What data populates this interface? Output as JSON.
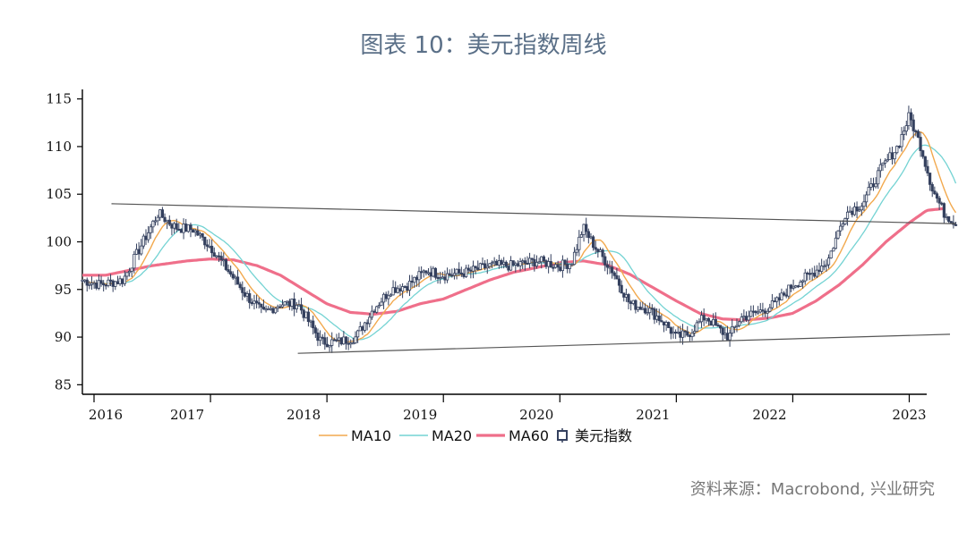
{
  "title": "图表 10：美元指数周线",
  "source": "资料来源：Macrobond, 兴业研究",
  "colors": {
    "ma10": "#f2a94e",
    "ma20": "#74d3d3",
    "ma60": "#ef6f8a",
    "candle": "#34405e",
    "trend": "#555555"
  },
  "chart_data": {
    "type": "candlestick",
    "ylim": [
      84,
      116
    ],
    "y_ticks": [
      85,
      90,
      95,
      100,
      105,
      110,
      115
    ],
    "x_range": [
      2015.9,
      2023.15
    ],
    "x_tick_positions": [
      2016.0,
      2017.0,
      2018.0,
      2019.0,
      2020.0,
      2021.0,
      2022.0,
      2023.0
    ],
    "x_labels": [
      {
        "label": "2016",
        "x": 2016.1
      },
      {
        "label": "2017",
        "x": 2016.8
      },
      {
        "label": "2018",
        "x": 2017.8
      },
      {
        "label": "2019",
        "x": 2018.8
      },
      {
        "label": "2020",
        "x": 2019.8
      },
      {
        "label": "2021",
        "x": 2020.8
      },
      {
        "label": "2022",
        "x": 2021.8
      },
      {
        "label": "2023",
        "x": 2023.0
      }
    ],
    "legend": [
      "MA10",
      "MA20",
      "MA60",
      "美元指数"
    ],
    "index_path": [
      [
        2015.9,
        96.0
      ],
      [
        2016.05,
        95.5
      ],
      [
        2016.25,
        96.0
      ],
      [
        2016.4,
        99.5
      ],
      [
        2016.55,
        103.0
      ],
      [
        2016.7,
        101.5
      ],
      [
        2016.85,
        101.3
      ],
      [
        2017.0,
        99.5
      ],
      [
        2017.15,
        97.0
      ],
      [
        2017.3,
        94.5
      ],
      [
        2017.45,
        92.5
      ],
      [
        2017.6,
        93.5
      ],
      [
        2017.75,
        93.5
      ],
      [
        2017.85,
        91.5
      ],
      [
        2017.95,
        89.5
      ],
      [
        2018.1,
        89.5
      ],
      [
        2018.25,
        90.0
      ],
      [
        2018.4,
        93.0
      ],
      [
        2018.55,
        95.0
      ],
      [
        2018.7,
        95.5
      ],
      [
        2018.85,
        97.0
      ],
      [
        2019.0,
        96.5
      ],
      [
        2019.2,
        96.8
      ],
      [
        2019.4,
        97.5
      ],
      [
        2019.6,
        97.5
      ],
      [
        2019.8,
        98.0
      ],
      [
        2020.0,
        97.5
      ],
      [
        2020.1,
        97.8
      ],
      [
        2020.2,
        101.5
      ],
      [
        2020.3,
        99.5
      ],
      [
        2020.45,
        97.0
      ],
      [
        2020.6,
        93.5
      ],
      [
        2020.75,
        93.0
      ],
      [
        2020.9,
        91.5
      ],
      [
        2021.0,
        90.0
      ],
      [
        2021.1,
        90.3
      ],
      [
        2021.25,
        92.2
      ],
      [
        2021.35,
        91.0
      ],
      [
        2021.45,
        90.0
      ],
      [
        2021.55,
        92.0
      ],
      [
        2021.7,
        92.6
      ],
      [
        2021.85,
        93.5
      ],
      [
        2022.0,
        95.5
      ],
      [
        2022.15,
        96.5
      ],
      [
        2022.3,
        98.0
      ],
      [
        2022.45,
        103.0
      ],
      [
        2022.6,
        104.0
      ],
      [
        2022.75,
        107.5
      ],
      [
        2022.9,
        110.0
      ],
      [
        2023.0,
        113.2
      ],
      [
        2023.1,
        110.0
      ],
      [
        2023.2,
        105.5
      ],
      [
        2023.3,
        103.0
      ],
      [
        2023.4,
        102.0
      ]
    ],
    "ma60_path": [
      [
        2015.9,
        96.5
      ],
      [
        2016.1,
        96.5
      ],
      [
        2016.5,
        97.5
      ],
      [
        2016.8,
        98.0
      ],
      [
        2017.0,
        98.2
      ],
      [
        2017.2,
        98.1
      ],
      [
        2017.4,
        97.5
      ],
      [
        2017.6,
        96.5
      ],
      [
        2017.8,
        95.0
      ],
      [
        2018.0,
        93.5
      ],
      [
        2018.2,
        92.6
      ],
      [
        2018.4,
        92.4
      ],
      [
        2018.6,
        92.7
      ],
      [
        2018.8,
        93.5
      ],
      [
        2019.0,
        94.0
      ],
      [
        2019.2,
        95.0
      ],
      [
        2019.4,
        96.0
      ],
      [
        2019.6,
        96.8
      ],
      [
        2019.8,
        97.3
      ],
      [
        2020.0,
        97.8
      ],
      [
        2020.2,
        98.0
      ],
      [
        2020.4,
        97.6
      ],
      [
        2020.6,
        96.6
      ],
      [
        2020.8,
        95.2
      ],
      [
        2021.0,
        93.8
      ],
      [
        2021.2,
        92.5
      ],
      [
        2021.4,
        91.9
      ],
      [
        2021.6,
        91.8
      ],
      [
        2021.8,
        92.0
      ],
      [
        2022.0,
        92.5
      ],
      [
        2022.2,
        93.8
      ],
      [
        2022.4,
        95.5
      ],
      [
        2022.6,
        97.6
      ],
      [
        2022.8,
        100.0
      ],
      [
        2023.0,
        102.0
      ],
      [
        2023.15,
        103.3
      ],
      [
        2023.3,
        103.5
      ]
    ],
    "trend_lines": [
      {
        "from": [
          2016.15,
          104.0
        ],
        "to": [
          2023.4,
          101.9
        ]
      },
      {
        "from": [
          2017.75,
          88.3
        ],
        "to": [
          2023.35,
          90.3
        ]
      }
    ]
  }
}
